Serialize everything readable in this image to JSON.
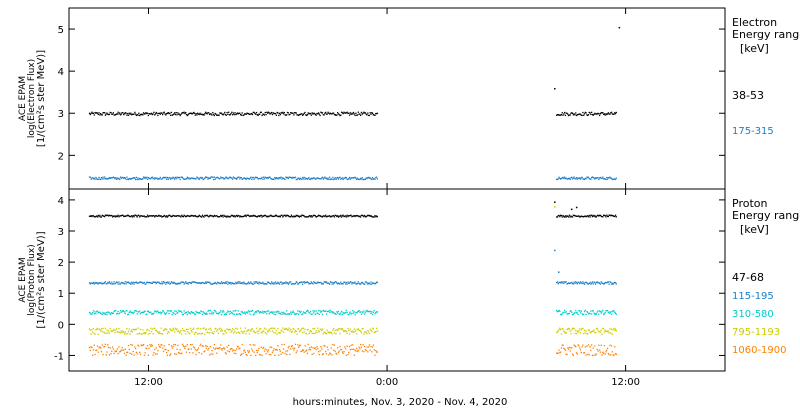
{
  "chart_data": [
    {
      "type": "scatter",
      "panel": "electron",
      "ylabel": [
        "ACE EPAM",
        "log(Electron Flux)",
        "[1/(cm²s ster MeV)]"
      ],
      "ylim": [
        1.2,
        5.5
      ],
      "yticks": [
        2,
        3,
        4,
        5
      ],
      "legend_title": [
        "Electron",
        "Energy ranges",
        "[keV]"
      ],
      "series": [
        {
          "name": "38-53",
          "color": "#000000",
          "level": 3.0,
          "noise": 0.04,
          "segments": [
            [
              6,
              35
            ],
            [
              53,
              59
            ]
          ],
          "extra_points": [
            [
              52.8,
              3.6
            ],
            [
              59.3,
              5.05
            ]
          ]
        },
        {
          "name": "175-315",
          "color": "#1a7fc7",
          "level": 1.47,
          "noise": 0.03,
          "segments": [
            [
              6,
              35
            ],
            [
              53,
              59
            ]
          ],
          "extra_points": []
        }
      ]
    },
    {
      "type": "scatter",
      "panel": "proton",
      "ylabel": [
        "ACE EPAM",
        "log(Proton Flux)",
        "[1/(cm²s ster MeV)]"
      ],
      "ylim": [
        -1.5,
        4.35
      ],
      "yticks": [
        -1,
        0,
        1,
        2,
        3,
        4
      ],
      "legend_title": [
        "Proton",
        "Energy ranges",
        "[keV]"
      ],
      "series": [
        {
          "name": "47-68",
          "color": "#000000",
          "level": 3.5,
          "noise": 0.03,
          "segments": [
            [
              6,
              35
            ],
            [
              53,
              59
            ]
          ],
          "extra_points": [
            [
              52.8,
              3.95
            ],
            [
              54.5,
              3.72
            ],
            [
              55.0,
              3.78
            ]
          ]
        },
        {
          "name": "115-195",
          "color": "#1a7fc7",
          "level": 1.35,
          "noise": 0.04,
          "segments": [
            [
              6,
              35
            ],
            [
              53,
              59
            ]
          ],
          "extra_points": [
            [
              52.8,
              2.4
            ],
            [
              53.2,
              1.7
            ]
          ]
        },
        {
          "name": "310-580",
          "color": "#00cccc",
          "level": 0.4,
          "noise": 0.07,
          "segments": [
            [
              6,
              35
            ],
            [
              53,
              59
            ]
          ],
          "extra_points": []
        },
        {
          "name": "795-1193",
          "color": "#cccc00",
          "level": -0.2,
          "noise": 0.1,
          "segments": [
            [
              6,
              35
            ],
            [
              53,
              59
            ]
          ],
          "extra_points": [
            [
              52.8,
              3.8
            ]
          ]
        },
        {
          "name": "1060-1900",
          "color": "#ff8000",
          "level": -0.8,
          "noise": 0.18,
          "segments": [
            [
              6,
              35
            ],
            [
              53,
              59
            ]
          ],
          "extra_points": []
        }
      ]
    }
  ],
  "x_axis": {
    "label": "hours:minutes, Nov.  3, 2020 - Nov.  4, 2020",
    "range_hours": [
      4,
      70
    ],
    "ticks": [
      {
        "hour": 12,
        "label": "12:00"
      },
      {
        "hour": 36,
        "label": "0:00"
      },
      {
        "hour": 60,
        "label": "12:00"
      }
    ]
  }
}
